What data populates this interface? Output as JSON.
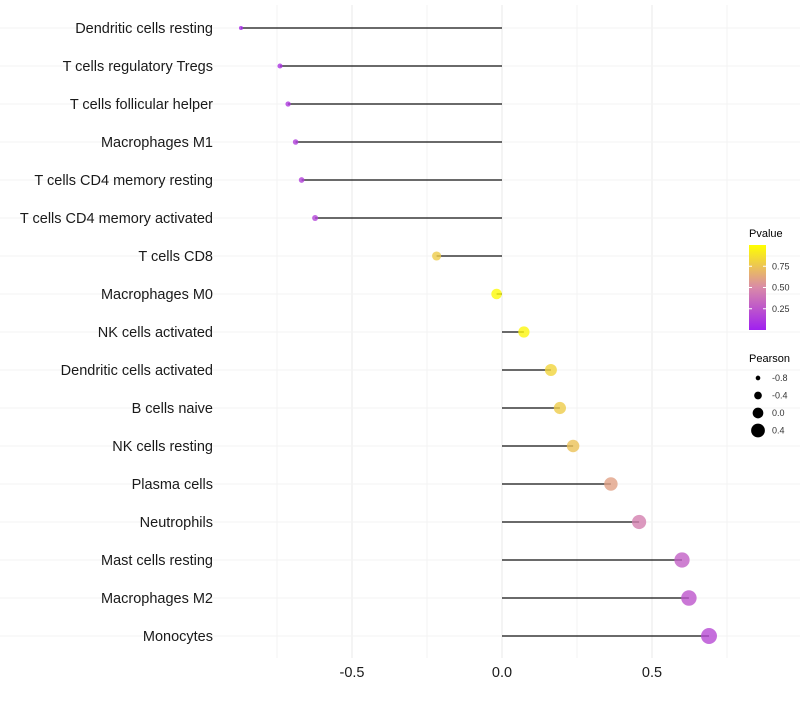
{
  "chart_data": {
    "type": "lollipop",
    "title": "",
    "xlabel": "",
    "ylabel": "",
    "xlim": [
      -0.92,
      0.76
    ],
    "xticks": [
      -0.5,
      0.0,
      0.5
    ],
    "xtick_labels": [
      "-0.5",
      "0.0",
      "0.5"
    ],
    "grid": true,
    "categories": [
      "Dendritic cells resting",
      "T cells regulatory  Tregs",
      "T cells follicular helper",
      "Macrophages M1",
      "T cells CD4 memory resting",
      "T cells CD4 memory activated",
      "T cells CD8",
      "Macrophages M0",
      "NK cells activated",
      "Dendritic cells activated",
      "B cells naive",
      "NK cells resting",
      "Plasma cells",
      "Neutrophils",
      "Mast cells resting",
      "Macrophages M2",
      "Monocytes"
    ],
    "pearson": [
      -0.87,
      -0.74,
      -0.713,
      -0.688,
      -0.668,
      -0.623,
      -0.218,
      -0.018,
      0.073,
      0.163,
      0.193,
      0.237,
      0.363,
      0.457,
      0.6,
      0.623,
      0.69
    ],
    "pvalue": [
      0.05,
      0.1,
      0.12,
      0.14,
      0.15,
      0.17,
      0.78,
      0.98,
      0.96,
      0.82,
      0.78,
      0.74,
      0.6,
      0.45,
      0.3,
      0.25,
      0.2
    ],
    "legend_color": {
      "title": "Pvalue",
      "ticks": [
        "0.25",
        "0.50",
        "0.75"
      ],
      "low": "#A020F0",
      "mid": "#D98AA8",
      "high": "#FFFF00",
      "position": "right"
    },
    "legend_size": {
      "title": "Pearson",
      "ticks": [
        "-0.8",
        "-0.4",
        "0.0",
        "0.4"
      ],
      "position": "right"
    }
  }
}
